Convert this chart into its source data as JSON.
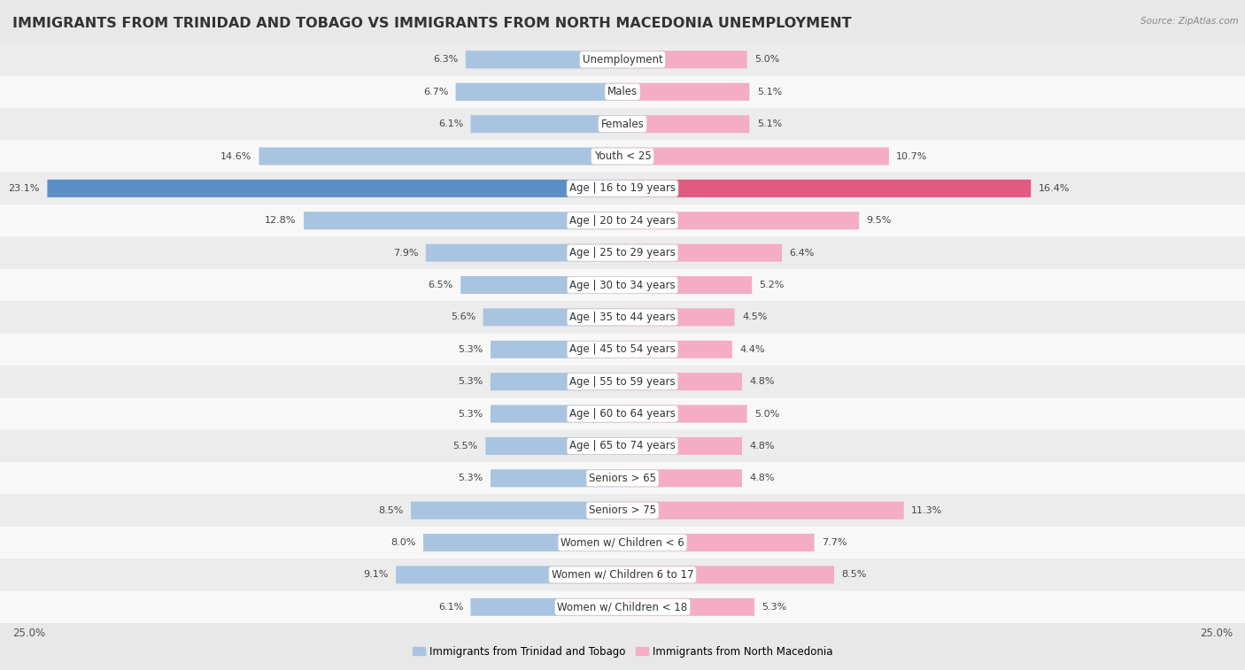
{
  "title": "IMMIGRANTS FROM TRINIDAD AND TOBAGO VS IMMIGRANTS FROM NORTH MACEDONIA UNEMPLOYMENT",
  "source": "Source: ZipAtlas.com",
  "categories": [
    "Unemployment",
    "Males",
    "Females",
    "Youth < 25",
    "Age | 16 to 19 years",
    "Age | 20 to 24 years",
    "Age | 25 to 29 years",
    "Age | 30 to 34 years",
    "Age | 35 to 44 years",
    "Age | 45 to 54 years",
    "Age | 55 to 59 years",
    "Age | 60 to 64 years",
    "Age | 65 to 74 years",
    "Seniors > 65",
    "Seniors > 75",
    "Women w/ Children < 6",
    "Women w/ Children 6 to 17",
    "Women w/ Children < 18"
  ],
  "left_values": [
    6.3,
    6.7,
    6.1,
    14.6,
    23.1,
    12.8,
    7.9,
    6.5,
    5.6,
    5.3,
    5.3,
    5.3,
    5.5,
    5.3,
    8.5,
    8.0,
    9.1,
    6.1
  ],
  "right_values": [
    5.0,
    5.1,
    5.1,
    10.7,
    16.4,
    9.5,
    6.4,
    5.2,
    4.5,
    4.4,
    4.8,
    5.0,
    4.8,
    4.8,
    11.3,
    7.7,
    8.5,
    5.3
  ],
  "left_color": "#a8c4e0",
  "right_color": "#f4adc4",
  "left_highlight_color": "#5b8ec4",
  "right_highlight_color": "#e05a82",
  "highlight_rows": [
    4
  ],
  "axis_limit": 25.0,
  "legend_left": "Immigrants from Trinidad and Tobago",
  "legend_right": "Immigrants from North Macedonia",
  "bg_color": "#e8e8e8",
  "row_even_color": "#ececec",
  "row_odd_color": "#f8f8f8",
  "title_fontsize": 11.5,
  "label_fontsize": 8.5,
  "value_fontsize": 8.0
}
